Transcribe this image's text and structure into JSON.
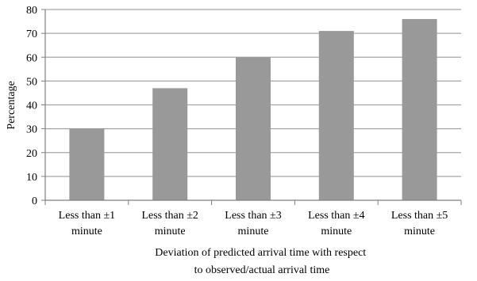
{
  "chart_data": {
    "type": "bar",
    "categories": [
      [
        "Less than ±1",
        "minute"
      ],
      [
        "Less than ±2",
        "minute"
      ],
      [
        "Less than ±3",
        "minute"
      ],
      [
        "Less than ±4",
        "minute"
      ],
      [
        "Less than ±5",
        "minute"
      ]
    ],
    "values": [
      30,
      47,
      60,
      71,
      76
    ],
    "ylabel": "Percentage",
    "xlabel": [
      "Deviation of predicted arrival time with respect",
      "to observed/actual arrival time"
    ],
    "ylim": [
      0,
      80
    ],
    "yticks": [
      0,
      10,
      20,
      30,
      40,
      50,
      60,
      70,
      80
    ],
    "grid": true,
    "bar_color": "#999999",
    "grid_color": "#a6a6a6"
  }
}
